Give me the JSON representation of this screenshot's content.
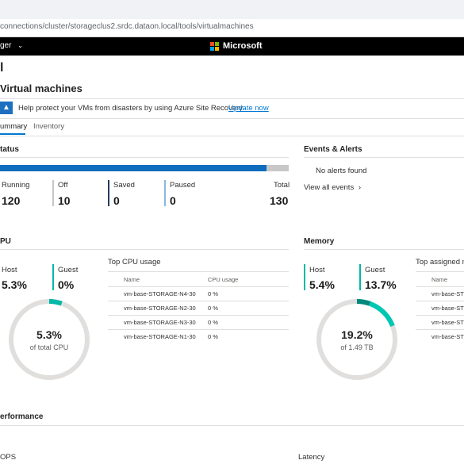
{
  "browser": {
    "address": "connections/cluster/storageclus2.srdc.dataon.local/tools/virtualmachines"
  },
  "header": {
    "menu_label": "ger",
    "chevron": "chevron-down-icon",
    "brand": "Microsoft"
  },
  "page": {
    "title": "l",
    "section_title": "Virtual machines"
  },
  "banner": {
    "text": "Help protect your VMs from disasters by using Azure Site Recovery.",
    "link": "Update now",
    "icon": "azure-icon"
  },
  "tabs": [
    {
      "label": "ummary",
      "active": true
    },
    {
      "label": "Inventory",
      "active": false
    }
  ],
  "status": {
    "heading": "tatus",
    "running_fraction": 0.923,
    "stats": [
      {
        "label": "Running",
        "value": "120",
        "color": "#0f6cbd"
      },
      {
        "label": "Off",
        "value": "10",
        "color": "#c8c6c4"
      },
      {
        "label": "Saved",
        "value": "0",
        "color": "#243a5e"
      },
      {
        "label": "Paused",
        "value": "0",
        "color": "#8ab7e0"
      },
      {
        "label": "Total",
        "value": "130"
      }
    ]
  },
  "events": {
    "heading": "Events & Alerts",
    "no_alerts": "No alerts found",
    "view_all": "View all events",
    "view_all_icon": "chevron-right-icon"
  },
  "cpu": {
    "heading": "PU",
    "host_label": "Host",
    "host_value": "5.3%",
    "guest_label": "Guest",
    "guest_value": "0%",
    "donut_value": "5.3%",
    "donut_sub": "of total CPU",
    "donut_fraction": 0.053,
    "table_title": "Top CPU usage",
    "col_name": "Name",
    "col_usage": "CPU usage",
    "rows": [
      {
        "name": "vm-base-STORAGE-N4-30",
        "usage": "0 %"
      },
      {
        "name": "vm-base-STORAGE-N2-30",
        "usage": "0 %"
      },
      {
        "name": "vm-base-STORAGE-N3-30",
        "usage": "0 %"
      },
      {
        "name": "vm-base-STORAGE-N1-30",
        "usage": "0 %"
      }
    ]
  },
  "memory": {
    "heading": "Memory",
    "host_label": "Host",
    "host_value": "5.4%",
    "guest_label": "Guest",
    "guest_value": "13.7%",
    "donut_value": "19.2%",
    "donut_sub": "of 1.49 TB",
    "donut_fraction": 0.192,
    "host_fraction": 0.054,
    "table_title": "Top assigned m",
    "col_name": "Name",
    "rows": [
      "vm-base-STO",
      "vm-base-STO",
      "vm-base-STO",
      "vm-base-STO"
    ]
  },
  "performance": {
    "heading": "erformance",
    "iops_label": "OPS",
    "latency_label": "Latency"
  },
  "colors": {
    "accent": "#0f6cbd",
    "teal": "#00b7a8",
    "track": "#e1dfdd"
  }
}
